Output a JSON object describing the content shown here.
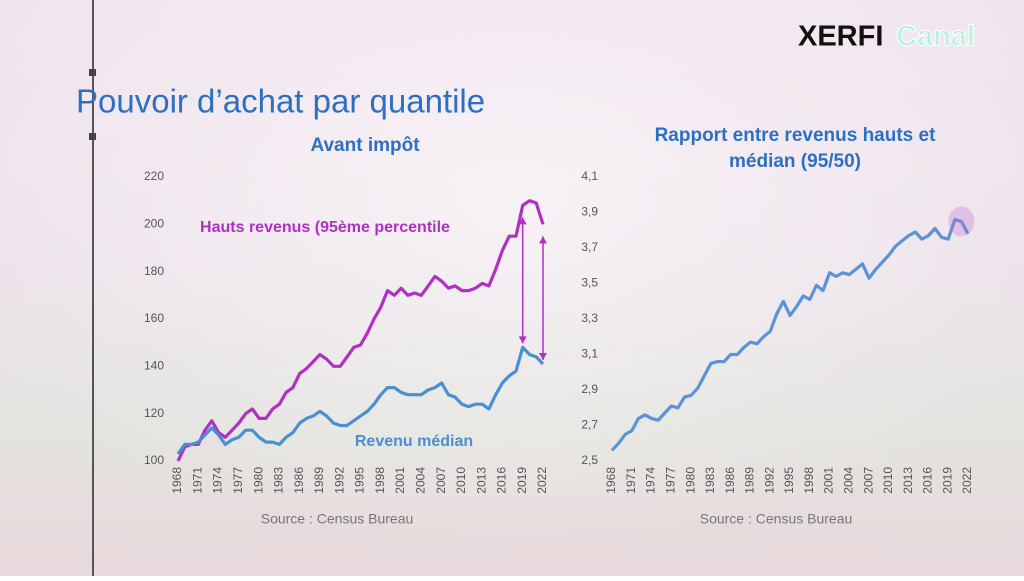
{
  "logo": {
    "brand": "XERFI",
    "channel": "Canal"
  },
  "title": "Pouvoir d’achat par quantile",
  "chart_data": [
    {
      "type": "line",
      "title": [
        "Avant impôt"
      ],
      "source": "Source : Census Bureau",
      "x": [
        1968,
        1969,
        1970,
        1971,
        1972,
        1973,
        1974,
        1975,
        1976,
        1977,
        1978,
        1979,
        1980,
        1981,
        1982,
        1983,
        1984,
        1985,
        1986,
        1987,
        1988,
        1989,
        1990,
        1991,
        1992,
        1993,
        1994,
        1995,
        1996,
        1997,
        1998,
        1999,
        2000,
        2001,
        2002,
        2003,
        2004,
        2005,
        2006,
        2007,
        2008,
        2009,
        2010,
        2011,
        2012,
        2013,
        2014,
        2015,
        2016,
        2017,
        2018,
        2019,
        2020,
        2021,
        2022
      ],
      "series": [
        {
          "name": "Hauts revenus (95ème percentile",
          "color": "#b030c4",
          "values": [
            100,
            106,
            107,
            107,
            113,
            117,
            112,
            110,
            113,
            116,
            120,
            122,
            118,
            118,
            122,
            124,
            129,
            131,
            137,
            139,
            142,
            145,
            143,
            140,
            140,
            144,
            148,
            149,
            154,
            160,
            165,
            172,
            170,
            173,
            170,
            171,
            170,
            174,
            178,
            176,
            173,
            174,
            172,
            172,
            173,
            175,
            174,
            181,
            189,
            195,
            195,
            208,
            210,
            209,
            200
          ]
        },
        {
          "name": "Revenu médian",
          "color": "#4a8fd2",
          "values": [
            103,
            107,
            107,
            108,
            111,
            114,
            111,
            107,
            109,
            110,
            113,
            113,
            110,
            108,
            108,
            107,
            110,
            112,
            116,
            118,
            119,
            121,
            119,
            116,
            115,
            115,
            117,
            119,
            121,
            124,
            128,
            131,
            131,
            129,
            128,
            128,
            128,
            130,
            131,
            133,
            128,
            127,
            124,
            123,
            124,
            124,
            122,
            128,
            133,
            136,
            138,
            148,
            145,
            144,
            141
          ]
        }
      ],
      "xlim": [
        1968,
        2022
      ],
      "xticks": [
        1968,
        1971,
        1974,
        1977,
        1980,
        1983,
        1986,
        1989,
        1992,
        1995,
        1998,
        2001,
        2004,
        2007,
        2010,
        2013,
        2016,
        2019,
        2022
      ],
      "ylim": [
        100,
        220
      ],
      "yticks": [
        100,
        120,
        140,
        160,
        180,
        200,
        220
      ]
    },
    {
      "type": "line",
      "title": [
        "Rapport entre revenus hauts et",
        "médian (95/50)"
      ],
      "source": "Source : Census Bureau",
      "x": [
        1968,
        1969,
        1970,
        1971,
        1972,
        1973,
        1974,
        1975,
        1976,
        1977,
        1978,
        1979,
        1980,
        1981,
        1982,
        1983,
        1984,
        1985,
        1986,
        1987,
        1988,
        1989,
        1990,
        1991,
        1992,
        1993,
        1994,
        1995,
        1996,
        1997,
        1998,
        1999,
        2000,
        2001,
        2002,
        2003,
        2004,
        2005,
        2006,
        2007,
        2008,
        2009,
        2010,
        2011,
        2012,
        2013,
        2014,
        2015,
        2016,
        2017,
        2018,
        2019,
        2020,
        2021,
        2022
      ],
      "series": [
        {
          "color": "#5a93d6",
          "values": [
            2.56,
            2.6,
            2.65,
            2.67,
            2.74,
            2.76,
            2.74,
            2.73,
            2.77,
            2.81,
            2.8,
            2.86,
            2.87,
            2.91,
            2.98,
            3.05,
            3.06,
            3.06,
            3.1,
            3.1,
            3.14,
            3.17,
            3.16,
            3.2,
            3.23,
            3.33,
            3.4,
            3.32,
            3.37,
            3.43,
            3.41,
            3.49,
            3.46,
            3.56,
            3.54,
            3.56,
            3.55,
            3.58,
            3.61,
            3.53,
            3.58,
            3.62,
            3.66,
            3.71,
            3.74,
            3.77,
            3.79,
            3.75,
            3.77,
            3.81,
            3.76,
            3.75,
            3.86,
            3.85,
            3.78
          ]
        }
      ],
      "xlim": [
        1968,
        2022
      ],
      "xticks": [
        1968,
        1971,
        1974,
        1977,
        1980,
        1983,
        1986,
        1989,
        1992,
        1995,
        1998,
        2001,
        2004,
        2007,
        2010,
        2013,
        2016,
        2019,
        2022
      ],
      "ylim": [
        2.5,
        4.1
      ],
      "yticks": [
        {
          "value": 2.5,
          "label": "2,5"
        },
        {
          "value": 2.7,
          "label": "2,7"
        },
        {
          "value": 2.9,
          "label": "2,9"
        },
        {
          "value": 3.1,
          "label": "3,1"
        },
        {
          "value": 3.3,
          "label": "3,3"
        },
        {
          "value": 3.5,
          "label": "3,5"
        },
        {
          "value": 3.7,
          "label": "3,7"
        },
        {
          "value": 3.9,
          "label": "3,9"
        },
        {
          "value": 4.1,
          "label": "4,1"
        }
      ]
    }
  ]
}
